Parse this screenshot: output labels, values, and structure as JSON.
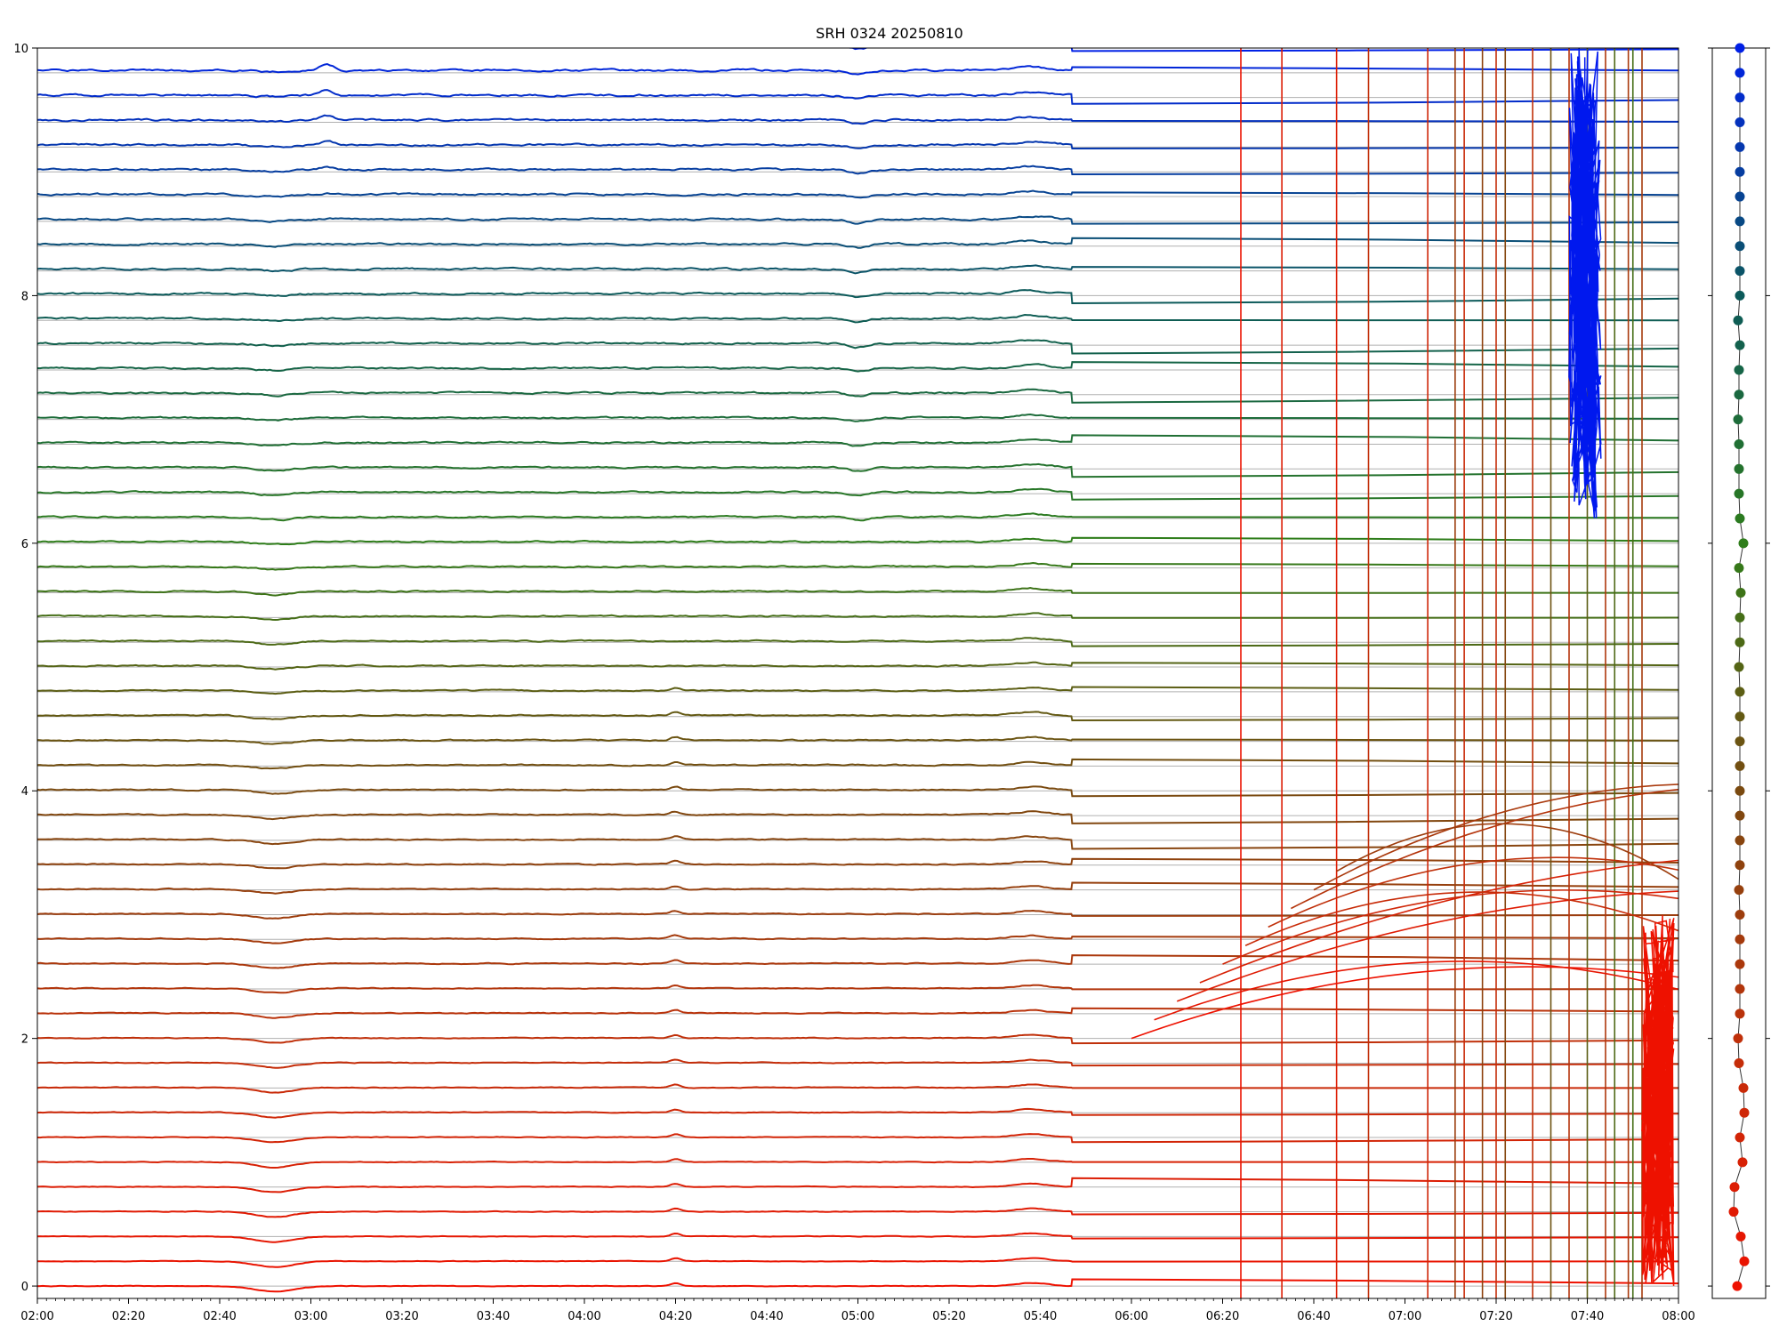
{
  "chart_data": {
    "type": "line",
    "title": "SRH 0324 20250810",
    "xlabel": "",
    "ylabel": "",
    "x_tick_labels": [
      "02:00",
      "02:20",
      "02:40",
      "03:00",
      "03:20",
      "03:40",
      "04:00",
      "04:20",
      "04:40",
      "05:00",
      "05:20",
      "05:40",
      "06:00",
      "06:20",
      "06:40",
      "07:00",
      "07:20",
      "07:40",
      "08:00"
    ],
    "x_range": [
      "02:00",
      "08:00"
    ],
    "y_ticks": [
      0,
      2,
      4,
      6,
      8,
      10
    ],
    "ylim": [
      -0.1,
      10
    ],
    "grid": "horizontal lines at each channel baseline",
    "channel_count": 51,
    "channel_spacing": 0.2,
    "color_gradient": [
      "#ee1100",
      "#c0300a",
      "#7a4a10",
      "#2e7d1a",
      "#0c5a5a",
      "#0020e6"
    ],
    "anomaly_start": "05:47",
    "side_panel": {
      "type": "scatter",
      "description_values": [
        -0.3,
        0.5,
        0.1,
        -0.7,
        -0.6,
        0.3,
        0.0,
        0.5,
        0.4,
        -0.1,
        -0.2,
        0.0,
        0.0,
        0.0,
        0.0,
        0.0,
        -0.1,
        0.0,
        0.0,
        0.0,
        0.0,
        0.0,
        0.0,
        0.0,
        0.0,
        -0.1,
        0.0,
        0.0,
        0.1,
        -0.1,
        0.4,
        0.0,
        -0.1,
        -0.1,
        -0.1,
        -0.2,
        -0.1,
        -0.1,
        0.0,
        -0.2,
        0.0,
        0.0,
        0.0,
        0.0,
        0.0,
        0.0,
        0.0,
        0.0,
        0.0,
        0.0,
        0.0
      ]
    }
  }
}
